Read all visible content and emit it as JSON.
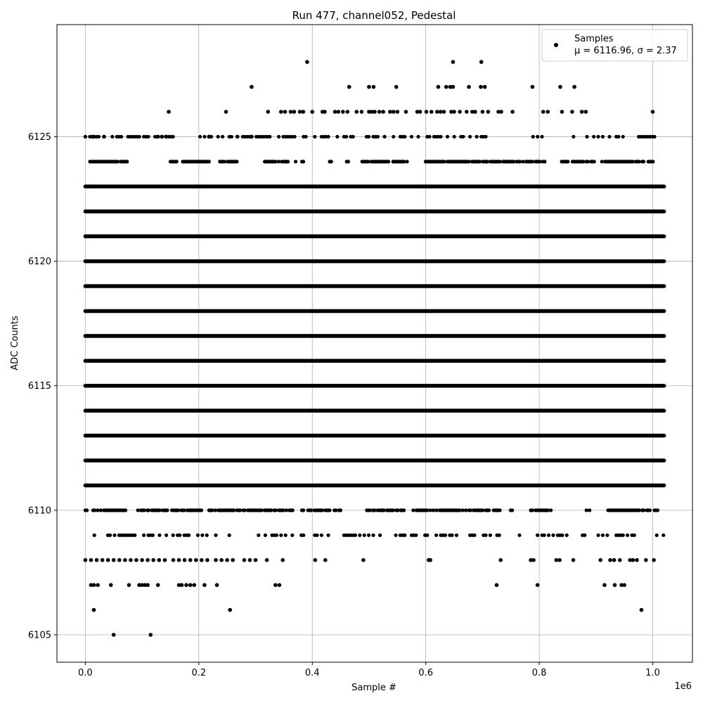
{
  "chart_data": {
    "type": "scatter",
    "title": "Run 477, channel052, Pedestal",
    "xlabel": "Sample #",
    "ylabel": "ADC Counts",
    "x_offset_label": "1e6",
    "xlim": [
      -50000,
      1070000
    ],
    "ylim": [
      6103.9,
      6129.5
    ],
    "x_ticks": [
      0.0,
      0.2,
      0.4,
      0.6,
      0.8,
      1.0
    ],
    "x_tick_labels": [
      "0.0",
      "0.2",
      "0.4",
      "0.6",
      "0.8",
      "1.0"
    ],
    "y_ticks": [
      6105,
      6110,
      6115,
      6120,
      6125
    ],
    "y_tick_labels": [
      "6105",
      "6110",
      "6115",
      "6120",
      "6125"
    ],
    "grid": true,
    "legend": {
      "placement": "top-right",
      "entries": [
        {
          "line1": "Samples",
          "line2": "μ = 6116.96, σ = 2.37"
        }
      ]
    },
    "series": [
      {
        "name": "Samples",
        "color": "#000000",
        "x_range": [
          0,
          1020000
        ],
        "bands": [
          {
            "y": 6111,
            "density": "continuous"
          },
          {
            "y": 6112,
            "density": "continuous"
          },
          {
            "y": 6113,
            "density": "continuous"
          },
          {
            "y": 6114,
            "density": "continuous"
          },
          {
            "y": 6115,
            "density": "continuous"
          },
          {
            "y": 6116,
            "density": "continuous"
          },
          {
            "y": 6117,
            "density": "continuous"
          },
          {
            "y": 6118,
            "density": "continuous"
          },
          {
            "y": 6119,
            "density": "continuous"
          },
          {
            "y": 6120,
            "density": "continuous"
          },
          {
            "y": 6121,
            "density": "continuous"
          },
          {
            "y": 6122,
            "density": "continuous"
          },
          {
            "y": 6123,
            "density": "continuous"
          },
          {
            "y": 6110,
            "density": "dense"
          },
          {
            "y": 6124,
            "density": "dense"
          },
          {
            "y": 6109,
            "density": "sparse"
          },
          {
            "y": 6125,
            "density": "sparse"
          }
        ],
        "points": [
          [
            50000,
            6105
          ],
          [
            115000,
            6105
          ],
          [
            15000,
            6106
          ],
          [
            255000,
            6106
          ],
          [
            980000,
            6106
          ],
          [
            10000,
            6107
          ],
          [
            15000,
            6107
          ],
          [
            22000,
            6107
          ],
          [
            45000,
            6107
          ],
          [
            77000,
            6107
          ],
          [
            95000,
            6107
          ],
          [
            100000,
            6107
          ],
          [
            105000,
            6107
          ],
          [
            110000,
            6107
          ],
          [
            128000,
            6107
          ],
          [
            165000,
            6107
          ],
          [
            170000,
            6107
          ],
          [
            178000,
            6107
          ],
          [
            185000,
            6107
          ],
          [
            192000,
            6107
          ],
          [
            210000,
            6107
          ],
          [
            232000,
            6107
          ],
          [
            335000,
            6107
          ],
          [
            342000,
            6107
          ],
          [
            725000,
            6107
          ],
          [
            797000,
            6107
          ],
          [
            915000,
            6107
          ],
          [
            933000,
            6107
          ],
          [
            945000,
            6107
          ],
          [
            950000,
            6107
          ],
          [
            0,
            6108
          ],
          [
            10000,
            6108
          ],
          [
            20000,
            6108
          ],
          [
            30000,
            6108
          ],
          [
            40000,
            6108
          ],
          [
            50000,
            6108
          ],
          [
            60000,
            6108
          ],
          [
            70000,
            6108
          ],
          [
            80000,
            6108
          ],
          [
            90000,
            6108
          ],
          [
            100000,
            6108
          ],
          [
            110000,
            6108
          ],
          [
            120000,
            6108
          ],
          [
            130000,
            6108
          ],
          [
            140000,
            6108
          ],
          [
            155000,
            6108
          ],
          [
            165000,
            6108
          ],
          [
            175000,
            6108
          ],
          [
            185000,
            6108
          ],
          [
            195000,
            6108
          ],
          [
            205000,
            6108
          ],
          [
            215000,
            6108
          ],
          [
            230000,
            6108
          ],
          [
            240000,
            6108
          ],
          [
            250000,
            6108
          ],
          [
            260000,
            6108
          ],
          [
            280000,
            6108
          ],
          [
            290000,
            6108
          ],
          [
            300000,
            6108
          ],
          [
            320000,
            6108
          ],
          [
            348000,
            6108
          ],
          [
            405000,
            6108
          ],
          [
            423000,
            6108
          ],
          [
            490000,
            6108
          ],
          [
            605000,
            6108
          ],
          [
            608000,
            6108
          ],
          [
            732000,
            6108
          ],
          [
            785000,
            6108
          ],
          [
            790000,
            6108
          ],
          [
            830000,
            6108
          ],
          [
            836000,
            6108
          ],
          [
            860000,
            6108
          ],
          [
            908000,
            6108
          ],
          [
            925000,
            6108
          ],
          [
            932000,
            6108
          ],
          [
            942000,
            6108
          ],
          [
            960000,
            6108
          ],
          [
            965000,
            6108
          ],
          [
            972000,
            6108
          ],
          [
            988000,
            6108
          ],
          [
            1002000,
            6108
          ],
          [
            13000,
            6125
          ],
          [
            33000,
            6125
          ],
          [
            128000,
            6125
          ],
          [
            135000,
            6125
          ],
          [
            142000,
            6125
          ],
          [
            218000,
            6125
          ],
          [
            268000,
            6125
          ],
          [
            293000,
            6125
          ],
          [
            147000,
            6126
          ],
          [
            248000,
            6126
          ],
          [
            322000,
            6126
          ],
          [
            345000,
            6126
          ],
          [
            352000,
            6126
          ],
          [
            362000,
            6126
          ],
          [
            368000,
            6126
          ],
          [
            378000,
            6126
          ],
          [
            384000,
            6126
          ],
          [
            400000,
            6126
          ],
          [
            418000,
            6126
          ],
          [
            422000,
            6126
          ],
          [
            440000,
            6126
          ],
          [
            446000,
            6126
          ],
          [
            454000,
            6126
          ],
          [
            462000,
            6126
          ],
          [
            478000,
            6126
          ],
          [
            487000,
            6126
          ],
          [
            500000,
            6126
          ],
          [
            505000,
            6126
          ],
          [
            510000,
            6126
          ],
          [
            518000,
            6126
          ],
          [
            525000,
            6126
          ],
          [
            537000,
            6126
          ],
          [
            543000,
            6126
          ],
          [
            550000,
            6126
          ],
          [
            565000,
            6126
          ],
          [
            585000,
            6126
          ],
          [
            590000,
            6126
          ],
          [
            601000,
            6126
          ],
          [
            610000,
            6126
          ],
          [
            620000,
            6126
          ],
          [
            626000,
            6126
          ],
          [
            632000,
            6126
          ],
          [
            645000,
            6126
          ],
          [
            650000,
            6126
          ],
          [
            660000,
            6126
          ],
          [
            672000,
            6126
          ],
          [
            682000,
            6126
          ],
          [
            687000,
            6126
          ],
          [
            700000,
            6126
          ],
          [
            710000,
            6126
          ],
          [
            728000,
            6126
          ],
          [
            733000,
            6126
          ],
          [
            753000,
            6126
          ],
          [
            807000,
            6126
          ],
          [
            815000,
            6126
          ],
          [
            840000,
            6126
          ],
          [
            858000,
            6126
          ],
          [
            875000,
            6126
          ],
          [
            882000,
            6126
          ],
          [
            1000000,
            6126
          ],
          [
            293000,
            6127
          ],
          [
            465000,
            6127
          ],
          [
            500000,
            6127
          ],
          [
            508000,
            6127
          ],
          [
            548000,
            6127
          ],
          [
            622000,
            6127
          ],
          [
            636000,
            6127
          ],
          [
            643000,
            6127
          ],
          [
            648000,
            6127
          ],
          [
            676000,
            6127
          ],
          [
            697000,
            6127
          ],
          [
            704000,
            6127
          ],
          [
            788000,
            6127
          ],
          [
            837000,
            6127
          ],
          [
            862000,
            6127
          ],
          [
            391000,
            6128
          ],
          [
            648000,
            6128
          ],
          [
            698000,
            6128
          ]
        ]
      }
    ]
  }
}
